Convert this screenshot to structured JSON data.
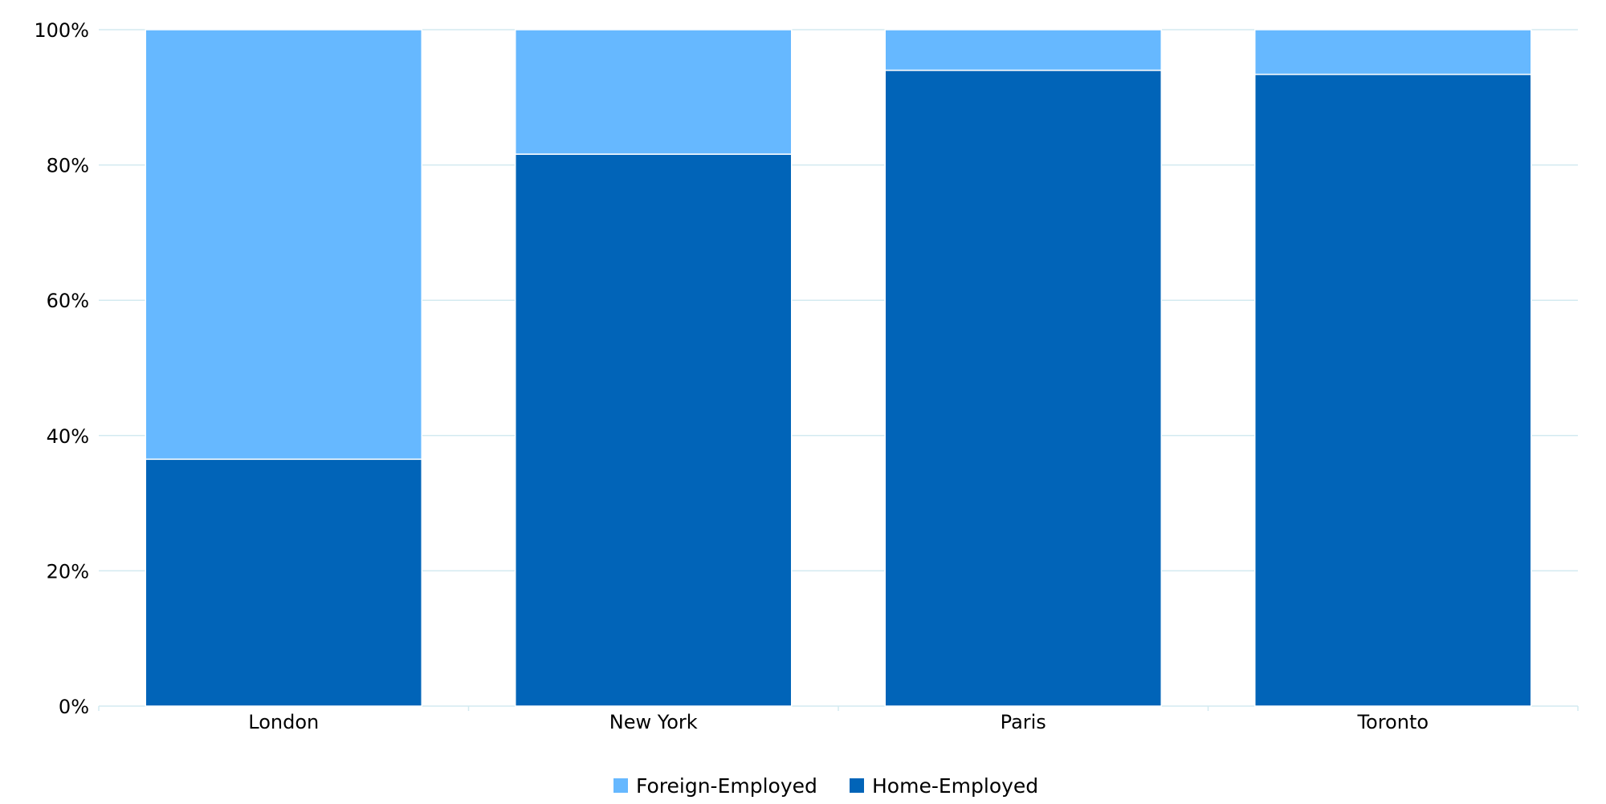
{
  "chart_data": {
    "type": "bar",
    "stacked": true,
    "normalized": true,
    "categories": [
      "London",
      "New York",
      "Paris",
      "Toronto"
    ],
    "series": [
      {
        "name": "Home-Employed",
        "values": [
          36.5,
          81.6,
          94.0,
          93.4
        ],
        "color": "#0164b8"
      },
      {
        "name": "Foreign-Employed",
        "values": [
          63.5,
          18.4,
          6.0,
          6.6
        ],
        "color": "#66b8ff"
      }
    ],
    "ylim": [
      0,
      100
    ],
    "yticks": [
      "0%",
      "20%",
      "40%",
      "60%",
      "80%",
      "100%"
    ],
    "grid": true,
    "gridline_color": "#d3eaf0",
    "legend_position": "bottom",
    "legend_order": [
      "Foreign-Employed",
      "Home-Employed"
    ],
    "title": "",
    "xlabel": "",
    "ylabel": ""
  }
}
